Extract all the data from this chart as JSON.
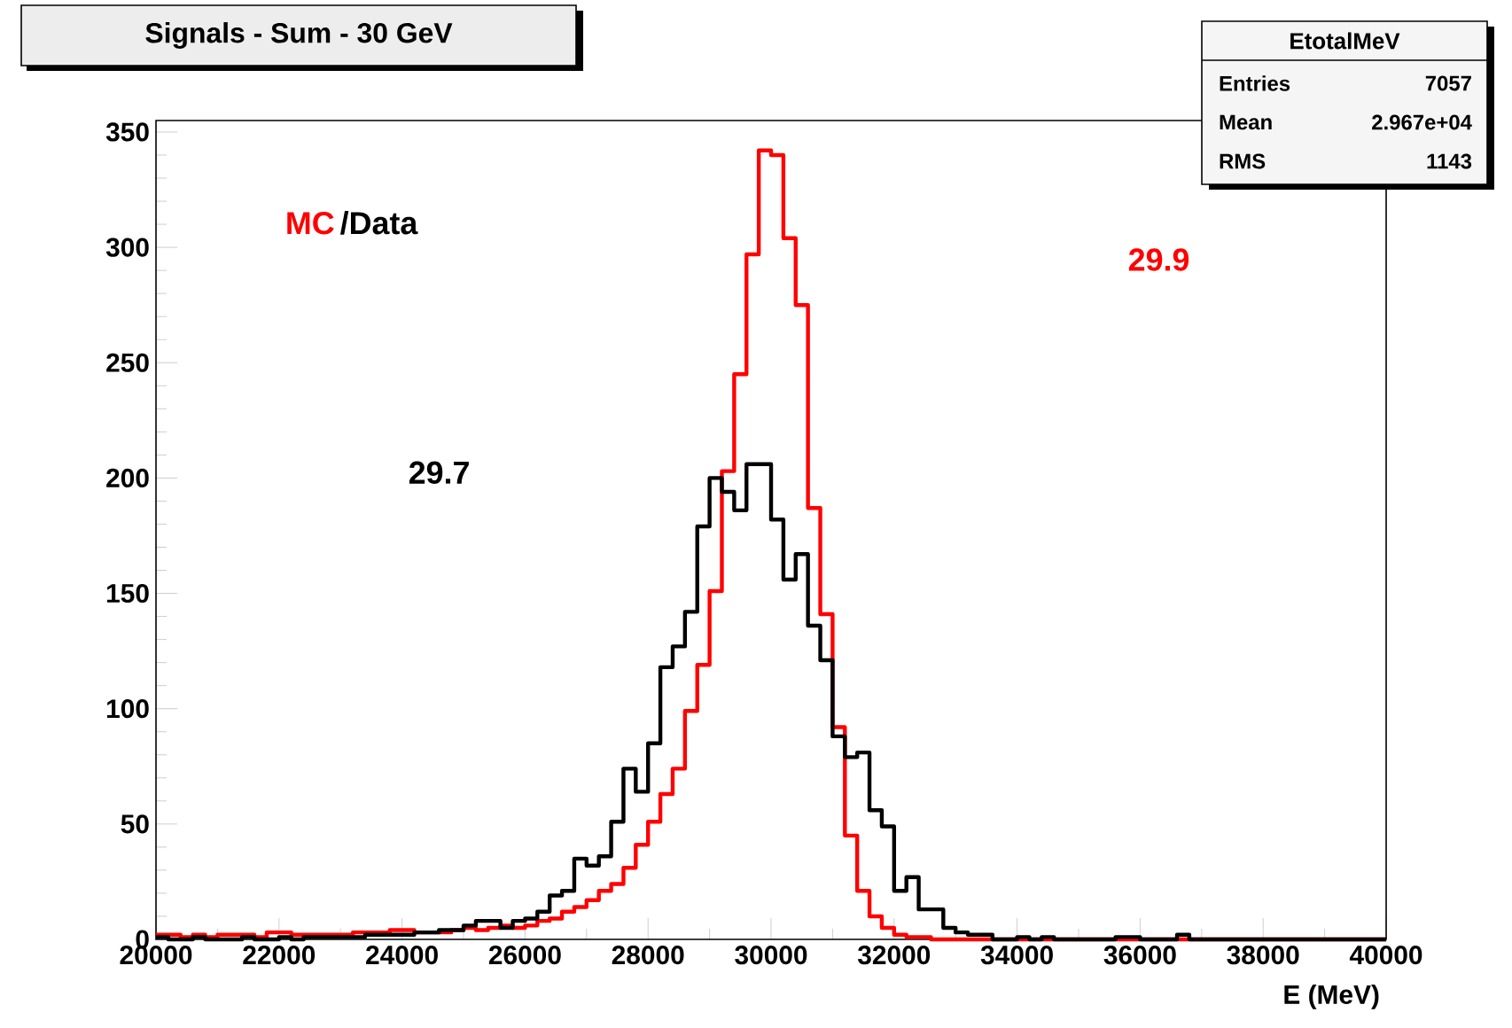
{
  "chart_data": {
    "type": "histogram",
    "title": "Signals - Sum - 30 GeV",
    "xlabel": "E (MeV)",
    "bins": [
      20000,
      20200,
      20400,
      20600,
      20800,
      21000,
      21200,
      21400,
      21600,
      21800,
      22000,
      22200,
      22400,
      22600,
      22800,
      23000,
      23200,
      23400,
      23600,
      23800,
      24000,
      24200,
      24400,
      24600,
      24800,
      25000,
      25200,
      25400,
      25600,
      25800,
      26000,
      26200,
      26400,
      26600,
      26800,
      27000,
      27200,
      27400,
      27600,
      27800,
      28000,
      28200,
      28400,
      28600,
      28800,
      29000,
      29200,
      29400,
      29600,
      29800,
      30000,
      30200,
      30400,
      30600,
      30800,
      31000,
      31200,
      31400,
      31600,
      31800,
      32000,
      32200,
      32400,
      32600,
      32800,
      33000,
      33200,
      33400,
      33600,
      33800,
      34000,
      34200,
      34400,
      34600,
      34800,
      35000,
      35200,
      35400,
      35600,
      35800,
      36000,
      36200,
      36400,
      36600,
      36800,
      37000,
      37200,
      37400,
      37600,
      37800,
      38000,
      38200,
      38400,
      38600,
      38800,
      39000,
      39200,
      39400,
      39600,
      39800,
      40000
    ],
    "series": [
      {
        "name": "MC",
        "color": "#ff0000",
        "values": [
          2,
          2,
          1,
          2,
          1,
          2,
          2,
          2,
          1,
          3,
          3,
          2,
          2,
          2,
          2,
          2,
          3,
          3,
          3,
          4,
          4,
          3,
          3,
          3,
          4,
          5,
          4,
          5,
          6,
          5,
          6,
          8,
          9,
          12,
          14,
          17,
          21,
          24,
          31,
          41,
          51,
          63,
          74,
          99,
          119,
          151,
          203,
          245,
          297,
          342,
          340,
          304,
          275,
          187,
          141,
          92,
          45,
          21,
          10,
          5,
          2,
          1,
          1,
          0,
          0,
          0,
          0,
          0,
          0,
          0,
          0,
          0,
          0,
          0,
          0,
          0,
          0,
          0,
          0,
          0,
          0,
          0,
          0,
          0,
          0,
          0,
          0,
          0,
          0,
          0,
          0,
          0,
          0,
          0,
          0,
          0,
          0,
          0,
          0,
          0
        ]
      },
      {
        "name": "/Data",
        "color": "#000000",
        "values": [
          1,
          0,
          0,
          1,
          0,
          0,
          0,
          1,
          0,
          0,
          1,
          0,
          1,
          1,
          1,
          1,
          1,
          2,
          2,
          2,
          2,
          3,
          3,
          4,
          4,
          6,
          8,
          8,
          5,
          8,
          9,
          12,
          19,
          21,
          35,
          32,
          36,
          51,
          74,
          64,
          85,
          118,
          127,
          142,
          179,
          200,
          194,
          186,
          206,
          206,
          182,
          156,
          167,
          136,
          121,
          88,
          79,
          81,
          56,
          49,
          21,
          27,
          13,
          13,
          5,
          3,
          2,
          2,
          0,
          0,
          1,
          0,
          1,
          0,
          0,
          0,
          0,
          0,
          1,
          1,
          0,
          0,
          0,
          2,
          0,
          0,
          0,
          0,
          0,
          0,
          0,
          0,
          0,
          0,
          0,
          0,
          0,
          0,
          0,
          0
        ]
      }
    ],
    "xlim": [
      20000,
      40000
    ],
    "ylim": [
      0,
      355
    ],
    "xticks": [
      20000,
      22000,
      24000,
      26000,
      28000,
      30000,
      32000,
      34000,
      36000,
      38000,
      40000
    ],
    "yticks": [
      0,
      50,
      100,
      150,
      200,
      250,
      300,
      350
    ],
    "annotations": [
      "EtotalMeV",
      "Entries",
      "7057",
      "Mean",
      "2.967e+04",
      "RMS",
      "1143",
      "29.9",
      "29.7"
    ],
    "grid": false,
    "legend": false
  }
}
